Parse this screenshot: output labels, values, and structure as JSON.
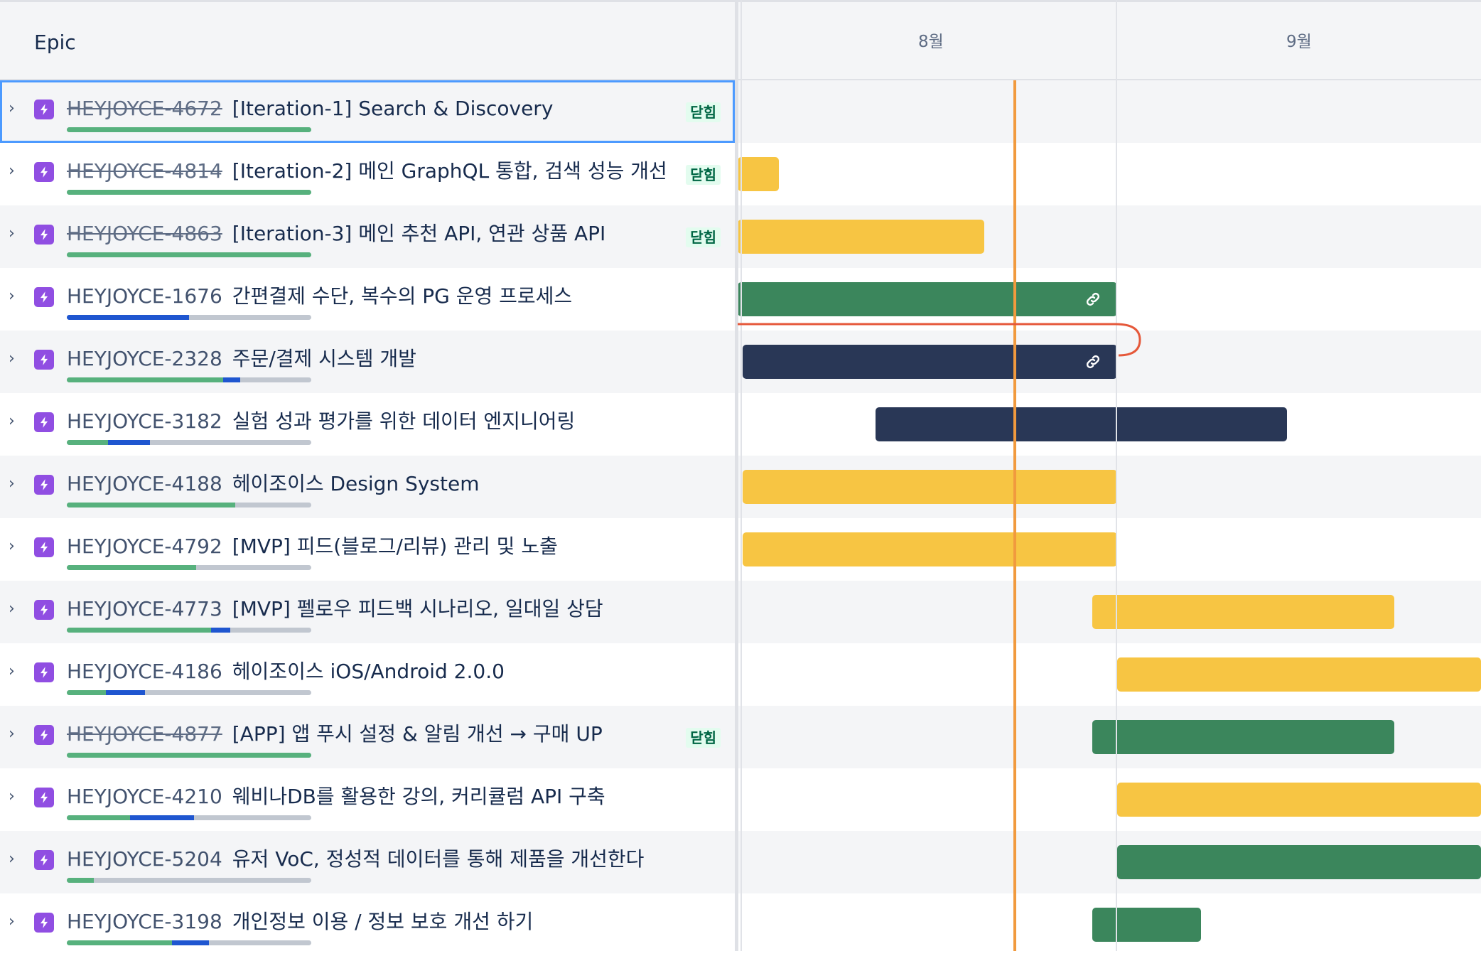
{
  "header": {
    "epic_label": "Epic",
    "months": [
      "8월",
      "9월"
    ]
  },
  "colors": {
    "yellow": "#f7c543",
    "green": "#3b865c",
    "navy": "#293756",
    "epic_purple": "#904ee2",
    "today_line": "#f19a3e",
    "dependency": "#e5583a"
  },
  "rows": [
    {
      "key": "HEYJOYCE-4672",
      "summary": "[Iteration-1] Search & Discovery",
      "closed": true,
      "status": "닫힘",
      "done": 1.0,
      "inprog": 0,
      "bar": null,
      "link": false,
      "selected": true
    },
    {
      "key": "HEYJOYCE-4814",
      "summary": "[Iteration-2] 메인 GraphQL 통합, 검색 성능 개선",
      "closed": true,
      "status": "닫힘",
      "done": 1.0,
      "inprog": 0,
      "bar": {
        "color": "yellow"
      },
      "link": false
    },
    {
      "key": "HEYJOYCE-4863",
      "summary": "[Iteration-3] 메인 추천 API, 연관 상품 API",
      "closed": true,
      "status": "닫힘",
      "done": 1.0,
      "inprog": 0,
      "bar": {
        "color": "yellow"
      },
      "link": false
    },
    {
      "key": "HEYJOYCE-1676",
      "summary": "간편결제 수단, 복수의 PG 운영 프로세스",
      "closed": false,
      "status": "",
      "done": 0,
      "inprog": 0.5,
      "bar": {
        "color": "green"
      },
      "link": true
    },
    {
      "key": "HEYJOYCE-2328",
      "summary": "주문/결제 시스템 개발",
      "closed": false,
      "status": "",
      "done": 0.64,
      "inprog": 0.07,
      "bar": {
        "color": "navy"
      },
      "link": true
    },
    {
      "key": "HEYJOYCE-3182",
      "summary": "실험 성과 평가를 위한 데이터 엔지니어링",
      "closed": false,
      "status": "",
      "done": 0.17,
      "inprog": 0.17,
      "bar": {
        "color": "navy"
      },
      "link": false
    },
    {
      "key": "HEYJOYCE-4188",
      "summary": "헤이조이스 Design System",
      "closed": false,
      "status": "",
      "done": 0.69,
      "inprog": 0,
      "bar": {
        "color": "yellow"
      },
      "link": false
    },
    {
      "key": "HEYJOYCE-4792",
      "summary": "[MVP] 피드(블로그/리뷰) 관리 및 노출",
      "closed": false,
      "status": "",
      "done": 0.53,
      "inprog": 0,
      "bar": {
        "color": "yellow"
      },
      "link": false
    },
    {
      "key": "HEYJOYCE-4773",
      "summary": "[MVP] 펠로우 피드백 시나리오, 일대일 상담",
      "closed": false,
      "status": "",
      "done": 0.59,
      "inprog": 0.08,
      "bar": {
        "color": "yellow"
      },
      "link": false
    },
    {
      "key": "HEYJOYCE-4186",
      "summary": "헤이조이스 iOS/Android 2.0.0",
      "closed": false,
      "status": "",
      "done": 0.16,
      "inprog": 0.16,
      "bar": {
        "color": "yellow"
      },
      "link": false
    },
    {
      "key": "HEYJOYCE-4877",
      "summary": "[APP] 앱 푸시 설정 & 알림 개선 → 구매 UP",
      "closed": true,
      "status": "닫힘",
      "done": 1.0,
      "inprog": 0,
      "bar": {
        "color": "green"
      },
      "link": false
    },
    {
      "key": "HEYJOYCE-4210",
      "summary": "웨비나DB를 활용한 강의, 커리큘럼 API 구축",
      "closed": false,
      "status": "",
      "done": 0.26,
      "inprog": 0.26,
      "bar": {
        "color": "yellow"
      },
      "link": false
    },
    {
      "key": "HEYJOYCE-5204",
      "summary": "유저 VoC, 정성적 데이터를 통해 제품을 개선한다",
      "closed": false,
      "status": "",
      "done": 0.11,
      "inprog": 0,
      "bar": {
        "color": "green"
      },
      "link": false
    },
    {
      "key": "HEYJOYCE-3198",
      "summary": "개인정보 이용 / 정보 보호 개선 하기",
      "closed": false,
      "status": "",
      "done": 0.43,
      "inprog": 0.15,
      "bar": {
        "color": "green"
      },
      "link": false
    }
  ]
}
